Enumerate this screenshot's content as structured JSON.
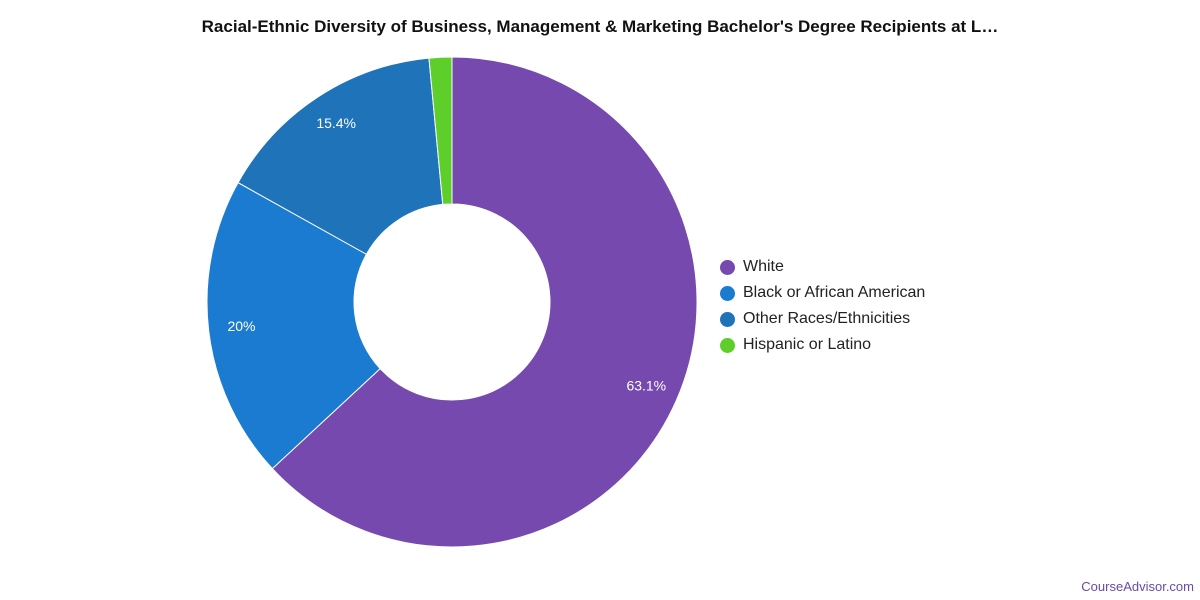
{
  "chart_data": {
    "type": "pie",
    "title": "Racial-Ethnic Diversity of Business, Management & Marketing Bachelor's Degree Recipients at L…",
    "categories": [
      "White",
      "Black or African American",
      "Other Races/Ethnicities",
      "Hispanic or Latino"
    ],
    "values": [
      63.1,
      20,
      15.4,
      1.5
    ],
    "data_labels": [
      "63.1%",
      "20%",
      "15.4%",
      ""
    ],
    "colors": [
      "#7549ad",
      "#1a7bd1",
      "#1f73b8",
      "#5ecf2a"
    ],
    "donut": true,
    "legend_position": "right"
  },
  "watermark": "CourseAdvisor.com"
}
